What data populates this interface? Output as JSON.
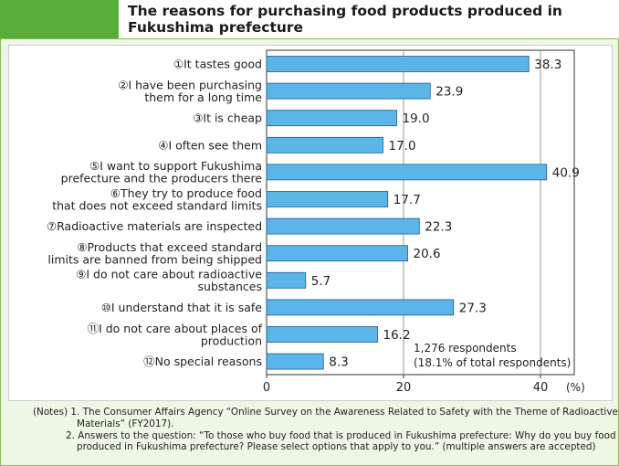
{
  "title": "The reasons for purchasing food products produced in Fukushima prefecture",
  "chart_data": {
    "type": "bar",
    "orientation": "horizontal",
    "title": "The reasons for purchasing food products produced in Fukushima prefecture",
    "unit": "(%)",
    "xlim": [
      0,
      45
    ],
    "ticks": [
      0,
      20,
      40
    ],
    "tick_labels": [
      "0",
      "20",
      "40"
    ],
    "categories": [
      [
        "①It tastes good"
      ],
      [
        "②I have been purchasing",
        "them for a long time"
      ],
      [
        "③It is cheap"
      ],
      [
        "④I often see them"
      ],
      [
        "⑤I want to support Fukushima",
        "prefecture and the producers there"
      ],
      [
        "⑥They try to produce food",
        "that does not exceed standard limits"
      ],
      [
        "⑦Radioactive materials are inspected"
      ],
      [
        "⑧Products that exceed standard",
        "limits are banned from being shipped"
      ],
      [
        "⑨I do not care about radioactive",
        "substances"
      ],
      [
        "⑩I understand that it is safe"
      ],
      [
        "⑪I do not care about places of",
        "production"
      ],
      [
        "⑫No special reasons"
      ]
    ],
    "values": [
      38.3,
      23.9,
      19.0,
      17.0,
      40.9,
      17.7,
      22.3,
      20.6,
      5.7,
      27.3,
      16.2,
      8.3
    ],
    "value_labels": [
      "38.3",
      "23.9",
      "19.0",
      "17.0",
      "40.9",
      "17.7",
      "22.3",
      "20.6",
      "5.7",
      "27.3",
      "16.2",
      "8.3"
    ],
    "annotation": [
      "1,276 respondents",
      "(18.1% of total respondents)"
    ],
    "bar_color": "#5bb5e8",
    "bar_edge_color": "#1a5e8f"
  },
  "notes": [
    "(Notes) 1. The Consumer Affairs Agency “Online Survey on the Awareness Related to Safety with the Theme of Radioactive",
    "Materials” (FY2017).",
    "2. Answers to the question: “To those who buy food that is produced in Fukushima prefecture: Why do you buy food",
    "produced in Fukushima prefecture? Please select options that apply to you.” (multiple answers are accepted)"
  ],
  "colors": {
    "page_background": "#eef7e6",
    "title_accent": "#58ad38",
    "border": "#8bbd5a"
  }
}
